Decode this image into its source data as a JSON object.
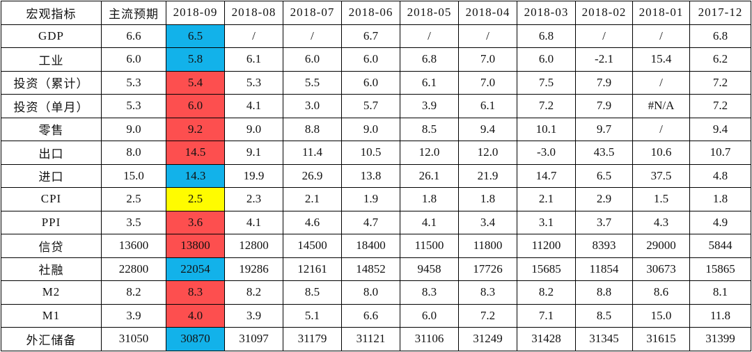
{
  "chart_data": {
    "type": "table",
    "header": [
      "宏观指标",
      "主流预期",
      "2018-09",
      "2018-08",
      "2018-07",
      "2018-06",
      "2018-05",
      "2018-04",
      "2018-03",
      "2018-02",
      "2018-01",
      "2017-12"
    ],
    "rows": [
      {
        "label": "GDP",
        "values": [
          "6.6",
          "6.5",
          "/",
          "/",
          "6.7",
          "/",
          "/",
          "6.8",
          "/",
          "/",
          "6.8"
        ],
        "highlight": "blue"
      },
      {
        "label": "工业",
        "values": [
          "6.0",
          "5.8",
          "6.1",
          "6.0",
          "6.0",
          "6.8",
          "7.0",
          "6.0",
          "-2.1",
          "15.4",
          "6.2"
        ],
        "highlight": "blue"
      },
      {
        "label": "投资（累计）",
        "values": [
          "5.3",
          "5.4",
          "5.3",
          "5.5",
          "6.0",
          "6.1",
          "7.0",
          "7.5",
          "7.9",
          "/",
          "7.2"
        ],
        "highlight": "red"
      },
      {
        "label": "投资（单月）",
        "values": [
          "5.3",
          "6.0",
          "4.1",
          "3.0",
          "5.7",
          "3.9",
          "6.1",
          "7.2",
          "7.9",
          "#N/A",
          "7.2"
        ],
        "highlight": "red"
      },
      {
        "label": "零售",
        "values": [
          "9.0",
          "9.2",
          "9.0",
          "8.8",
          "9.0",
          "8.5",
          "9.4",
          "10.1",
          "9.7",
          "/",
          "9.4"
        ],
        "highlight": "red"
      },
      {
        "label": "出口",
        "values": [
          "8.0",
          "14.5",
          "9.1",
          "11.4",
          "10.5",
          "12.0",
          "12.0",
          "-3.0",
          "43.5",
          "10.6",
          "10.7"
        ],
        "highlight": "red"
      },
      {
        "label": "进口",
        "values": [
          "15.0",
          "14.3",
          "19.9",
          "26.9",
          "13.8",
          "26.1",
          "21.9",
          "14.7",
          "6.5",
          "37.5",
          "4.8"
        ],
        "highlight": "blue"
      },
      {
        "label": "CPI",
        "values": [
          "2.5",
          "2.5",
          "2.3",
          "2.1",
          "1.9",
          "1.8",
          "1.8",
          "2.1",
          "2.9",
          "1.5",
          "1.8"
        ],
        "highlight": "yellow"
      },
      {
        "label": "PPI",
        "values": [
          "3.5",
          "3.6",
          "4.1",
          "4.6",
          "4.7",
          "4.1",
          "3.4",
          "3.1",
          "3.7",
          "4.3",
          "4.9"
        ],
        "highlight": "red"
      },
      {
        "label": "信贷",
        "values": [
          "13600",
          "13800",
          "12800",
          "14500",
          "18400",
          "11500",
          "11800",
          "11200",
          "8393",
          "29000",
          "5844"
        ],
        "highlight": "red"
      },
      {
        "label": "社融",
        "values": [
          "22800",
          "22054",
          "19286",
          "12161",
          "14852",
          "9458",
          "17726",
          "15685",
          "11854",
          "30673",
          "15865"
        ],
        "highlight": "blue"
      },
      {
        "label": "M2",
        "values": [
          "8.2",
          "8.3",
          "8.2",
          "8.5",
          "8.0",
          "8.3",
          "8.3",
          "8.2",
          "8.8",
          "8.6",
          "8.1"
        ],
        "highlight": "red"
      },
      {
        "label": "M1",
        "values": [
          "3.9",
          "4.0",
          "3.9",
          "5.1",
          "6.6",
          "6.0",
          "7.2",
          "7.1",
          "8.5",
          "15.0",
          "11.8"
        ],
        "highlight": "red"
      },
      {
        "label": "外汇储备",
        "values": [
          "31050",
          "30870",
          "31097",
          "31179",
          "31121",
          "31106",
          "31249",
          "31428",
          "31345",
          "31615",
          "31399"
        ],
        "highlight": "blue"
      }
    ]
  },
  "colors": {
    "red": "#fd4f4f",
    "blue": "#12b2ea",
    "yellow": "#fffc00",
    "border": "#000000",
    "text": "#111111"
  }
}
